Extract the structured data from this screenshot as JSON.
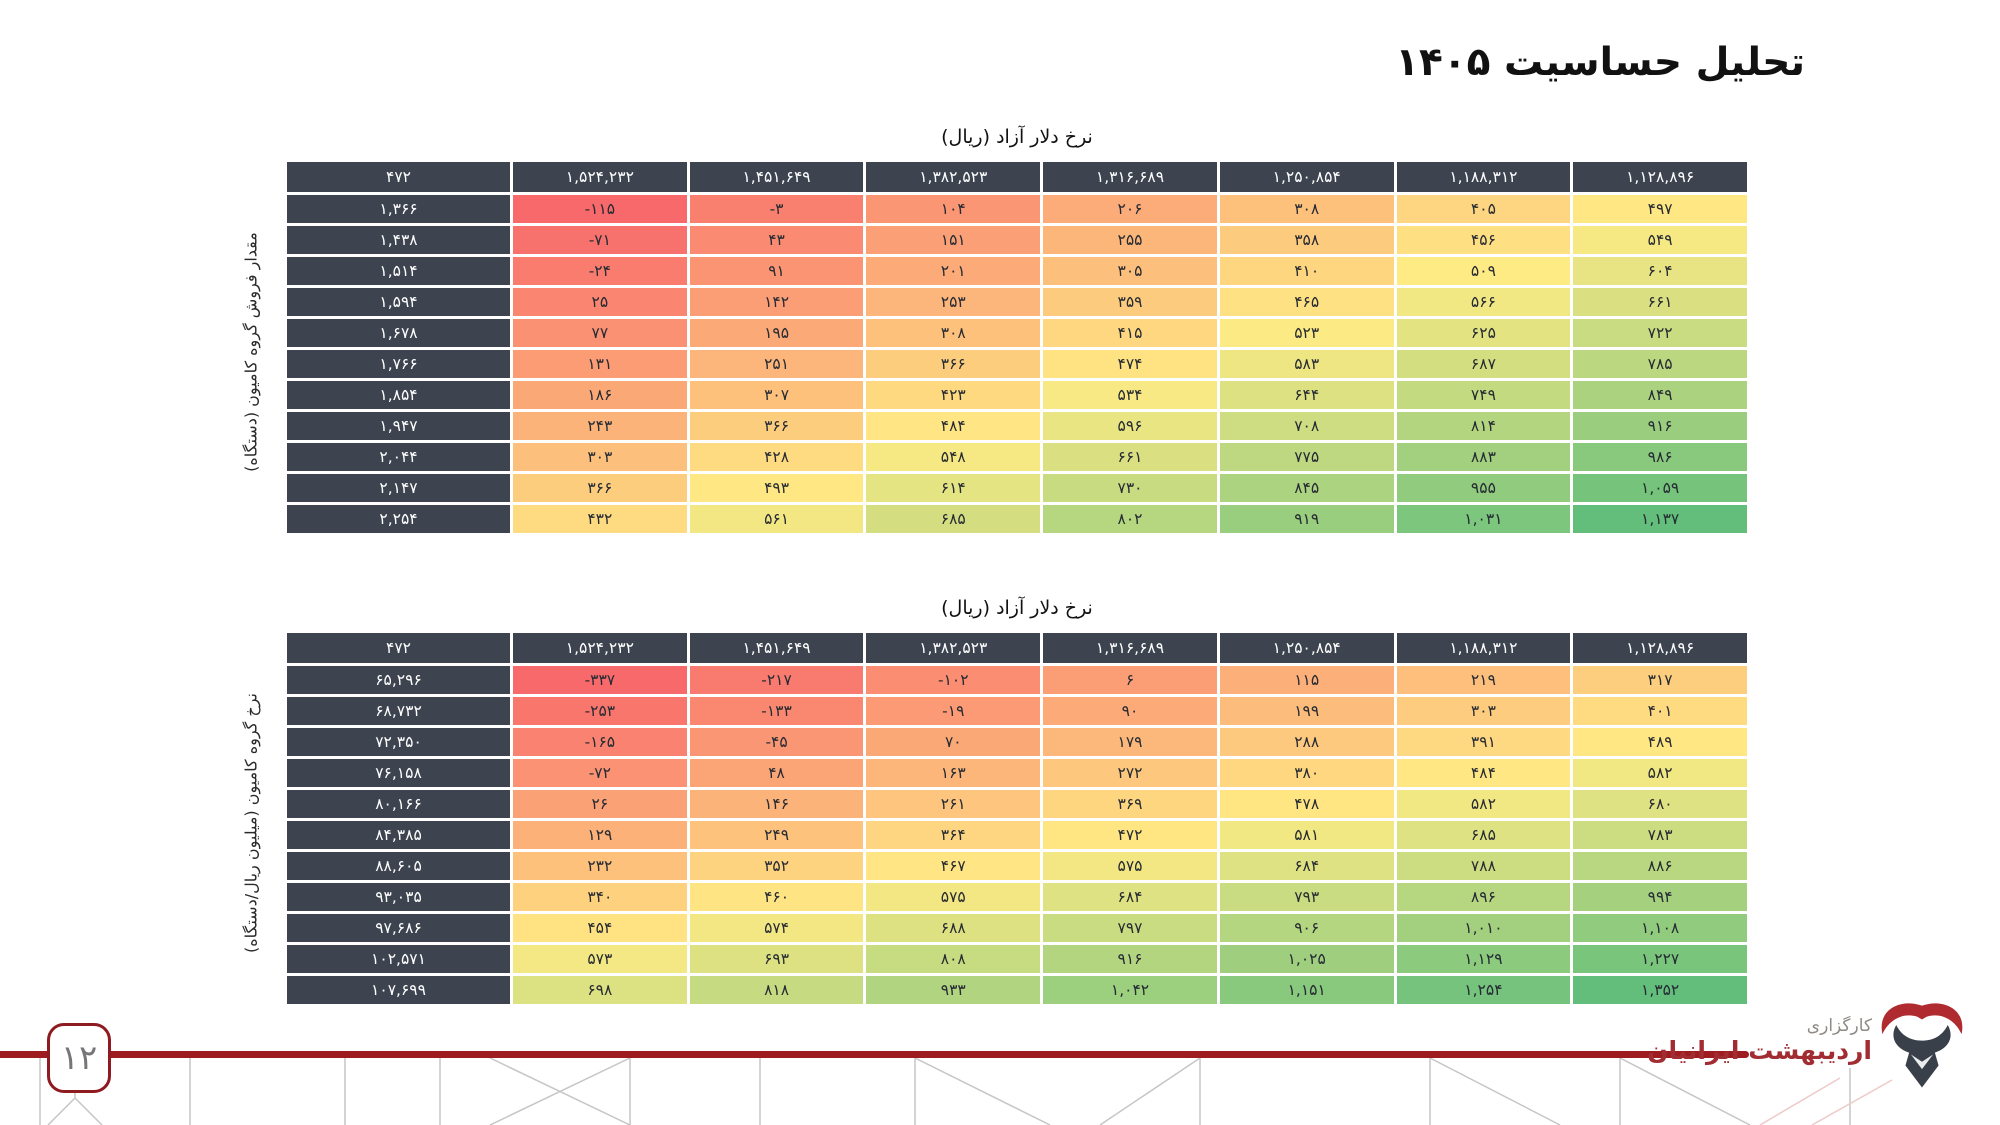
{
  "page": {
    "title": "تحلیل حساسیت ۱۴۰۵",
    "page_number": "۱۲"
  },
  "logo": {
    "icon": "bull-logo",
    "line1": "کارگزاری",
    "line2": "اردیبهشت ایرانیان"
  },
  "colors": {
    "header_bg": "#3d4450",
    "header_text": "#ffffff",
    "cell_text": "#262b33",
    "accent_line": "#9e1b20",
    "badge_border": "#8e1b20",
    "badge_text": "#76767a",
    "logo_red": "#a12d32",
    "logo_gray": "#8f8a85",
    "scale_min_red": "#F8696B",
    "scale_mid_yellow": "#FFEB84",
    "scale_max_green": "#63BE7B"
  },
  "chart_data": [
    {
      "type": "heatmap",
      "title": "نرخ دلار آزاد (ریال)",
      "row_axis_label": "مقدار فروش گروه کامیون (دستگاه)",
      "corner_value": 472,
      "columns": [
        1524232,
        1451649,
        1382523,
        1316689,
        1250854,
        1188312,
        1128896
      ],
      "rows": [
        1366,
        1438,
        1514,
        1594,
        1678,
        1766,
        1854,
        1947,
        2044,
        2147,
        2254
      ],
      "values": [
        [
          -115,
          -3,
          104,
          206,
          308,
          405,
          497
        ],
        [
          -71,
          43,
          151,
          255,
          358,
          456,
          549
        ],
        [
          -24,
          91,
          201,
          305,
          410,
          509,
          604
        ],
        [
          25,
          142,
          253,
          359,
          465,
          566,
          661
        ],
        [
          77,
          195,
          308,
          415,
          523,
          625,
          722
        ],
        [
          131,
          251,
          366,
          474,
          583,
          687,
          785
        ],
        [
          186,
          307,
          423,
          534,
          644,
          749,
          849
        ],
        [
          243,
          366,
          484,
          596,
          708,
          814,
          916
        ],
        [
          303,
          428,
          548,
          661,
          775,
          883,
          986
        ],
        [
          366,
          493,
          614,
          730,
          845,
          955,
          1059
        ],
        [
          432,
          561,
          685,
          802,
          919,
          1031,
          1137
        ]
      ],
      "color_scale": {
        "low": "#F8696B",
        "mid": "#FFEB84",
        "high": "#63BE7B"
      },
      "number_style": "persian-digits"
    },
    {
      "type": "heatmap",
      "title": "نرخ دلار آزاد (ریال)",
      "row_axis_label": "نرخ گروه کامیون (میلیون ریال/دستگاه)",
      "corner_value": 472,
      "columns": [
        1524232,
        1451649,
        1382523,
        1316689,
        1250854,
        1188312,
        1128896
      ],
      "rows": [
        65296,
        68732,
        72350,
        76158,
        80166,
        84385,
        88605,
        93035,
        97686,
        102571,
        107699
      ],
      "values": [
        [
          -337,
          -217,
          -102,
          6,
          115,
          219,
          317
        ],
        [
          -253,
          -133,
          -19,
          90,
          199,
          303,
          401
        ],
        [
          -165,
          -45,
          70,
          179,
          288,
          391,
          489
        ],
        [
          -72,
          48,
          163,
          272,
          380,
          484,
          582
        ],
        [
          26,
          146,
          261,
          369,
          478,
          582,
          680
        ],
        [
          129,
          249,
          364,
          472,
          581,
          685,
          783
        ],
        [
          232,
          352,
          467,
          575,
          684,
          788,
          886
        ],
        [
          340,
          460,
          575,
          684,
          793,
          896,
          994
        ],
        [
          454,
          574,
          688,
          797,
          906,
          1010,
          1108
        ],
        [
          573,
          693,
          808,
          916,
          1025,
          1129,
          1227
        ],
        [
          698,
          818,
          933,
          1042,
          1151,
          1254,
          1352
        ]
      ],
      "color_scale": {
        "low": "#F8696B",
        "mid": "#FFEB84",
        "high": "#63BE7B"
      },
      "number_style": "persian-digits"
    }
  ]
}
